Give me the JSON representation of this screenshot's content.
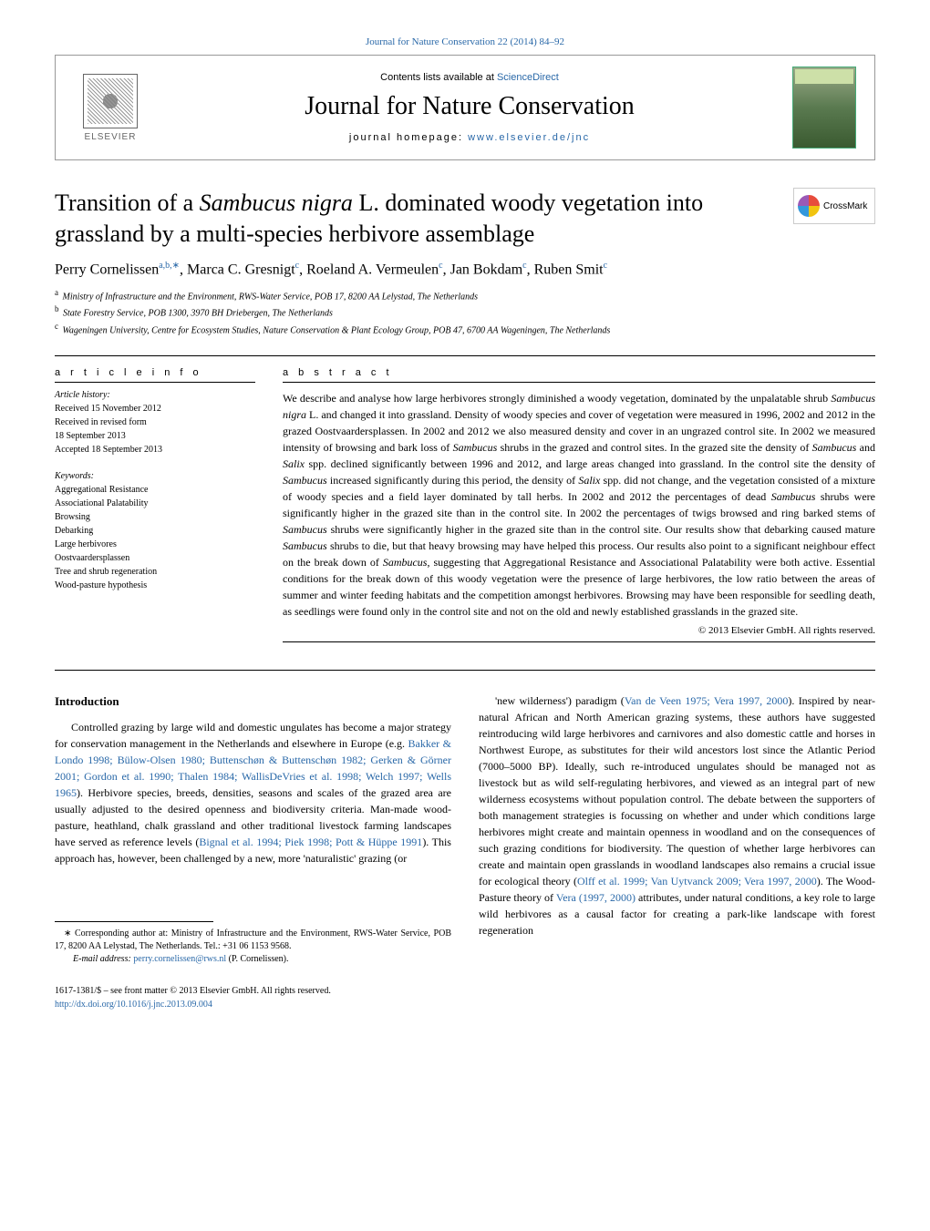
{
  "header": {
    "citation_link": "Journal for Nature Conservation 22 (2014) 84–92",
    "contents_prefix": "Contents lists available at ",
    "contents_link": "ScienceDirect",
    "journal_name": "Journal for Nature Conservation",
    "homepage_label": "journal homepage: ",
    "homepage_url": "www.elsevier.de/jnc",
    "publisher": "ELSEVIER",
    "crossmark_label": "CrossMark"
  },
  "article": {
    "title_html": "Transition of a <em>Sambucus nigra</em> L. dominated woody vegetation into grassland by a multi-species herbivore assemblage",
    "authors_html": "Perry Cornelissen<sup>a,b,∗</sup>, Marca C. Gresnigt<sup>c</sup>, Roeland A. Vermeulen<sup>c</sup>, Jan Bokdam<sup>c</sup>, Ruben Smit<sup>c</sup>",
    "affiliations": [
      {
        "sup": "a",
        "text": "Ministry of Infrastructure and the Environment, RWS-Water Service, POB 17, 8200 AA Lelystad, The Netherlands"
      },
      {
        "sup": "b",
        "text": "State Forestry Service, POB 1300, 3970 BH Driebergen, The Netherlands"
      },
      {
        "sup": "c",
        "text": "Wageningen University, Centre for Ecosystem Studies, Nature Conservation & Plant Ecology Group, POB 47, 6700 AA Wageningen, The Netherlands"
      }
    ]
  },
  "info": {
    "heading": "a r t i c l e   i n f o",
    "history_label": "Article history:",
    "history": [
      "Received 15 November 2012",
      "Received in revised form",
      "18 September 2013",
      "Accepted 18 September 2013"
    ],
    "keywords_label": "Keywords:",
    "keywords": [
      "Aggregational Resistance",
      "Associational Palatability",
      "Browsing",
      "Debarking",
      "Large herbivores",
      "Oostvaardersplassen",
      "Tree and shrub regeneration",
      "Wood-pasture hypothesis"
    ]
  },
  "abstract": {
    "heading": "a b s t r a c t",
    "body_html": "We describe and analyse how large herbivores strongly diminished a woody vegetation, dominated by the unpalatable shrub <em>Sambucus nigra</em> L. and changed it into grassland. Density of woody species and cover of vegetation were measured in 1996, 2002 and 2012 in the grazed Oostvaardersplassen. In 2002 and 2012 we also measured density and cover in an ungrazed control site. In 2002 we measured intensity of browsing and bark loss of <em>Sambucus</em> shrubs in the grazed and control sites. In the grazed site the density of <em>Sambucus</em> and <em>Salix</em> spp. declined significantly between 1996 and 2012, and large areas changed into grassland. In the control site the density of <em>Sambucus</em> increased significantly during this period, the density of <em>Salix</em> spp. did not change, and the vegetation consisted of a mixture of woody species and a field layer dominated by tall herbs. In 2002 and 2012 the percentages of dead <em>Sambucus</em> shrubs were significantly higher in the grazed site than in the control site. In 2002 the percentages of twigs browsed and ring barked stems of <em>Sambucus</em> shrubs were significantly higher in the grazed site than in the control site. Our results show that debarking caused mature <em>Sambucus</em> shrubs to die, but that heavy browsing may have helped this process. Our results also point to a significant neighbour effect on the break down of <em>Sambucus</em>, suggesting that Aggregational Resistance and Associational Palatability were both active. Essential conditions for the break down of this woody vegetation were the presence of large herbivores, the low ratio between the areas of summer and winter feeding habitats and the competition amongst herbivores. Browsing may have been responsible for seedling death, as seedlings were found only in the control site and not on the old and newly established grasslands in the grazed site.",
    "copyright": "© 2013 Elsevier GmbH. All rights reserved."
  },
  "body": {
    "intro_heading": "Introduction",
    "col1_p1_html": "Controlled grazing by large wild and domestic ungulates has become a major strategy for conservation management in the Netherlands and elsewhere in Europe (e.g. <span class=\"ref-inline\">Bakker &amp; Londo 1998; Bülow-Olsen 1980; Buttenschøn &amp; Buttenschøn 1982; Gerken &amp; Görner 2001; Gordon et al. 1990; Thalen 1984; WallisDeVries et al. 1998; Welch 1997; Wells 1965</span>). Herbivore species, breeds, densities, seasons and scales of the grazed area are usually adjusted to the desired openness and biodiversity criteria. Man-made wood-pasture, heathland, chalk grassland and other traditional livestock farming landscapes have served as reference levels (<span class=\"ref-inline\">Bignal et al. 1994; Piek 1998; Pott &amp; Hüppe 1991</span>). This approach has, however, been challenged by a new, more 'naturalistic' grazing (or",
    "col2_p1_html": "'new wilderness') paradigm (<span class=\"ref-inline\">Van de Veen 1975; Vera 1997, 2000</span>). Inspired by near-natural African and North American grazing systems, these authors have suggested reintroducing wild large herbivores and carnivores and also domestic cattle and horses in Northwest Europe, as substitutes for their wild ancestors lost since the Atlantic Period (7000–5000 BP). Ideally, such re-introduced ungulates should be managed not as livestock but as wild self-regulating herbivores, and viewed as an integral part of new wilderness ecosystems without population control. The debate between the supporters of both management strategies is focussing on whether and under which conditions large herbivores might create and maintain openness in woodland and on the consequences of such grazing conditions for biodiversity. The question of whether large herbivores can create and maintain open grasslands in woodland landscapes also remains a crucial issue for ecological theory (<span class=\"ref-inline\">Olff et al. 1999; Van Uytvanck 2009; Vera 1997, 2000</span>). The Wood-Pasture theory of <span class=\"ref-inline\">Vera (1997, 2000)</span> attributes, under natural conditions, a key role to large wild herbivores as a causal factor for creating a park-like landscape with forest regeneration"
  },
  "footnote": {
    "text_html": "∗ Corresponding author at: Ministry of Infrastructure and the Environment, RWS-Water Service, POB 17, 8200 AA Lelystad, The Netherlands. Tel.: +31 06 1153 9568.",
    "email_label": "E-mail address: ",
    "email": "perry.cornelissen@rws.nl",
    "email_suffix": " (P. Cornelissen)."
  },
  "bottom": {
    "issn_line": "1617-1381/$ – see front matter © 2013 Elsevier GmbH. All rights reserved.",
    "doi": "http://dx.doi.org/10.1016/j.jnc.2013.09.004"
  },
  "colors": {
    "link": "#2968a8",
    "text": "#000000",
    "rule": "#000000"
  }
}
